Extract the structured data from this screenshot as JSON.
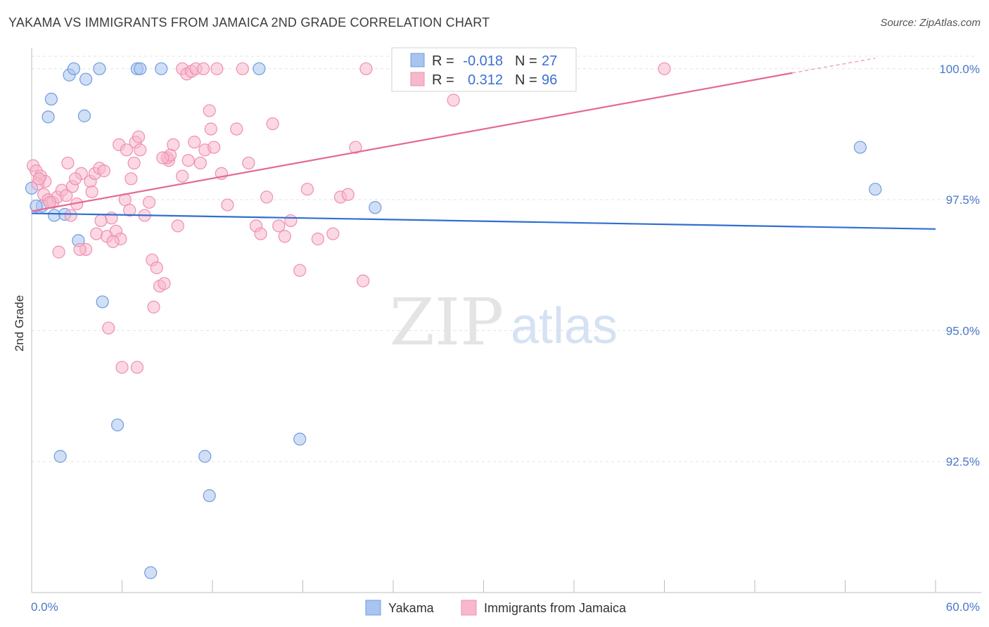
{
  "header": {
    "title": "YAKAMA VS IMMIGRANTS FROM JAMAICA 2ND GRADE CORRELATION CHART",
    "source": "Source: ZipAtlas.com"
  },
  "watermark": {
    "zip": "ZIP",
    "atlas": "atlas"
  },
  "stats": [
    {
      "r_label": "R = ",
      "r_value": "-0.018",
      "n_label": "N = ",
      "n_value": "27"
    },
    {
      "r_label": "R = ",
      "r_value": "0.312",
      "n_label": "N = ",
      "n_value": "96"
    }
  ],
  "chart_data": {
    "type": "scatter",
    "title": "YAKAMA VS IMMIGRANTS FROM JAMAICA 2ND GRADE CORRELATION CHART",
    "xlabel": "",
    "ylabel": "2nd Grade",
    "xlim": [
      0,
      60
    ],
    "ylim": [
      90.0,
      100.4
    ],
    "x_tick_labels": [
      {
        "value": 0,
        "label": "0.0%"
      },
      {
        "value": 60,
        "label": "60.0%"
      }
    ],
    "y_tick_labels": [
      {
        "value": 100.0,
        "label": "100.0%"
      },
      {
        "value": 97.5,
        "label": "97.5%"
      },
      {
        "value": 95.0,
        "label": "95.0%"
      },
      {
        "value": 92.5,
        "label": "92.5%"
      }
    ],
    "grid": true,
    "legend_position": "bottom-center",
    "series": [
      {
        "name": "Yakama",
        "color": "#a9c4ef",
        "edge_color": "#6f9be0",
        "line_color": "#2f6fcf",
        "trend": {
          "x": [
            0,
            60
          ],
          "y": [
            97.24,
            96.94
          ]
        },
        "points": [
          [
            0.0,
            97.72
          ],
          [
            0.7,
            97.38
          ],
          [
            1.3,
            99.42
          ],
          [
            1.1,
            99.08
          ],
          [
            2.5,
            99.88
          ],
          [
            2.8,
            100.0
          ],
          [
            3.5,
            99.1
          ],
          [
            3.6,
            99.8
          ],
          [
            4.5,
            100.0
          ],
          [
            7.0,
            100.0
          ],
          [
            7.2,
            100.0
          ],
          [
            8.6,
            100.0
          ],
          [
            15.1,
            100.0
          ],
          [
            1.5,
            97.2
          ],
          [
            2.2,
            97.22
          ],
          [
            3.1,
            96.72
          ],
          [
            4.7,
            95.55
          ],
          [
            5.7,
            93.2
          ],
          [
            1.9,
            92.6
          ],
          [
            11.5,
            92.6
          ],
          [
            11.8,
            91.85
          ],
          [
            17.8,
            92.93
          ],
          [
            22.8,
            97.35
          ],
          [
            55.0,
            98.5
          ],
          [
            56.0,
            97.7
          ],
          [
            0.3,
            97.38
          ],
          [
            7.9,
            90.38
          ]
        ]
      },
      {
        "name": "Immigrants from Jamaica",
        "color": "#f7b8cc",
        "edge_color": "#ee8fb0",
        "line_color": "#e46a95",
        "trend": {
          "x": [
            0,
            50.5
          ],
          "y": [
            97.28,
            99.92
          ]
        },
        "trend_dashed": {
          "x": [
            50.5,
            56.0
          ],
          "y": [
            99.92,
            100.2
          ]
        },
        "points": [
          [
            0.1,
            98.15
          ],
          [
            0.3,
            98.05
          ],
          [
            0.6,
            97.95
          ],
          [
            0.9,
            97.85
          ],
          [
            0.4,
            97.8
          ],
          [
            0.8,
            97.6
          ],
          [
            1.1,
            97.5
          ],
          [
            1.4,
            97.45
          ],
          [
            1.7,
            97.55
          ],
          [
            2.0,
            97.68
          ],
          [
            2.3,
            97.58
          ],
          [
            2.6,
            97.2
          ],
          [
            2.4,
            98.2
          ],
          [
            2.7,
            97.75
          ],
          [
            3.0,
            97.42
          ],
          [
            3.3,
            98.0
          ],
          [
            3.6,
            96.55
          ],
          [
            3.9,
            97.85
          ],
          [
            4.2,
            98.0
          ],
          [
            4.0,
            97.65
          ],
          [
            4.5,
            98.1
          ],
          [
            4.8,
            98.05
          ],
          [
            4.3,
            96.85
          ],
          [
            5.0,
            96.8
          ],
          [
            5.3,
            97.15
          ],
          [
            5.1,
            95.05
          ],
          [
            5.6,
            96.9
          ],
          [
            5.9,
            96.75
          ],
          [
            6.2,
            97.5
          ],
          [
            6.5,
            97.3
          ],
          [
            5.8,
            98.55
          ],
          [
            6.3,
            98.45
          ],
          [
            6.6,
            97.9
          ],
          [
            6.9,
            98.6
          ],
          [
            7.2,
            98.45
          ],
          [
            7.1,
            98.7
          ],
          [
            7.5,
            97.2
          ],
          [
            7.8,
            97.45
          ],
          [
            8.0,
            96.35
          ],
          [
            8.3,
            96.2
          ],
          [
            8.1,
            95.45
          ],
          [
            8.5,
            95.85
          ],
          [
            8.8,
            95.9
          ],
          [
            9.1,
            98.25
          ],
          [
            9.4,
            98.55
          ],
          [
            9.0,
            98.3
          ],
          [
            9.7,
            97.0
          ],
          [
            10.0,
            97.95
          ],
          [
            10.4,
            98.25
          ],
          [
            10.8,
            98.6
          ],
          [
            11.2,
            98.2
          ],
          [
            11.5,
            98.45
          ],
          [
            12.1,
            98.5
          ],
          [
            11.9,
            98.85
          ],
          [
            12.6,
            98.0
          ],
          [
            13.0,
            97.4
          ],
          [
            10.0,
            100.0
          ],
          [
            10.3,
            99.9
          ],
          [
            10.6,
            99.95
          ],
          [
            10.9,
            100.0
          ],
          [
            11.4,
            100.0
          ],
          [
            11.8,
            99.2
          ],
          [
            12.3,
            100.0
          ],
          [
            14.0,
            100.0
          ],
          [
            14.4,
            98.2
          ],
          [
            14.9,
            97.0
          ],
          [
            15.2,
            96.85
          ],
          [
            15.6,
            97.55
          ],
          [
            16.0,
            98.95
          ],
          [
            16.4,
            97.0
          ],
          [
            16.8,
            96.8
          ],
          [
            17.2,
            97.1
          ],
          [
            17.8,
            96.15
          ],
          [
            18.3,
            97.7
          ],
          [
            19.0,
            96.75
          ],
          [
            20.0,
            96.85
          ],
          [
            20.5,
            97.55
          ],
          [
            21.0,
            97.6
          ],
          [
            21.5,
            98.5
          ],
          [
            22.0,
            95.95
          ],
          [
            22.2,
            100.0
          ],
          [
            28.0,
            99.4
          ],
          [
            42.0,
            100.0
          ],
          [
            6.0,
            94.3
          ],
          [
            7.0,
            94.3
          ],
          [
            1.8,
            96.5
          ],
          [
            3.2,
            96.55
          ],
          [
            4.6,
            97.1
          ],
          [
            5.4,
            96.7
          ],
          [
            6.8,
            98.2
          ],
          [
            9.2,
            98.35
          ],
          [
            2.9,
            97.9
          ],
          [
            1.2,
            97.45
          ],
          [
            0.5,
            97.9
          ],
          [
            8.7,
            98.3
          ],
          [
            13.6,
            98.85
          ]
        ]
      }
    ]
  },
  "legend": {
    "items": [
      {
        "label": "Yakama",
        "color": "#a9c4ef",
        "edge": "#6f9be0"
      },
      {
        "label": "Immigrants from Jamaica",
        "color": "#f7b8cc",
        "edge": "#ee8fb0"
      }
    ]
  }
}
